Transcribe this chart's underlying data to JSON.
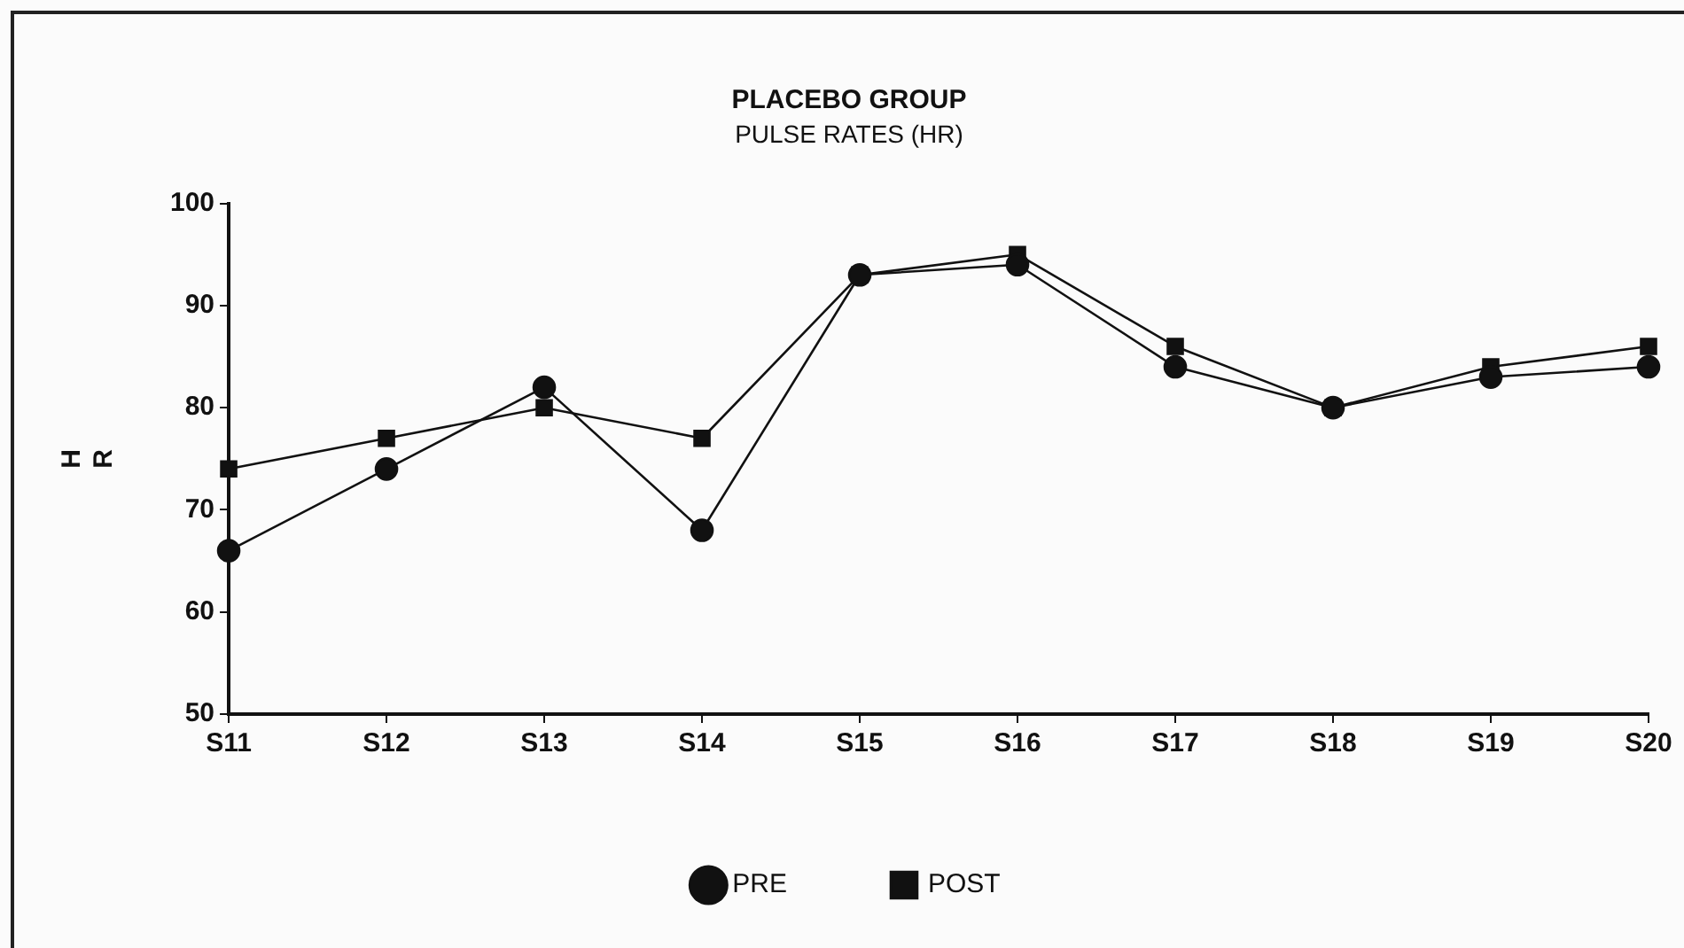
{
  "chart_data": {
    "type": "line",
    "title": "PLACEBO GROUP",
    "subtitle": "PULSE RATES (HR)",
    "ylabel": "HR",
    "categories": [
      "S11",
      "S12",
      "S13",
      "S14",
      "S15",
      "S16",
      "S17",
      "S18",
      "S19",
      "S20"
    ],
    "series": [
      {
        "name": "PRE",
        "color": "#111111",
        "marker": "circle",
        "values": [
          66,
          74,
          82,
          68,
          93,
          94,
          84,
          80,
          83,
          84
        ]
      },
      {
        "name": "POST",
        "color": "#111111",
        "marker": "square",
        "values": [
          74,
          77,
          80,
          77,
          93,
          95,
          86,
          80,
          84,
          86
        ]
      }
    ],
    "ylim": [
      50,
      100
    ],
    "yticks": [
      50,
      60,
      70,
      80,
      90,
      100
    ],
    "grid": false,
    "legend": "bottom",
    "line_style": "solid"
  }
}
